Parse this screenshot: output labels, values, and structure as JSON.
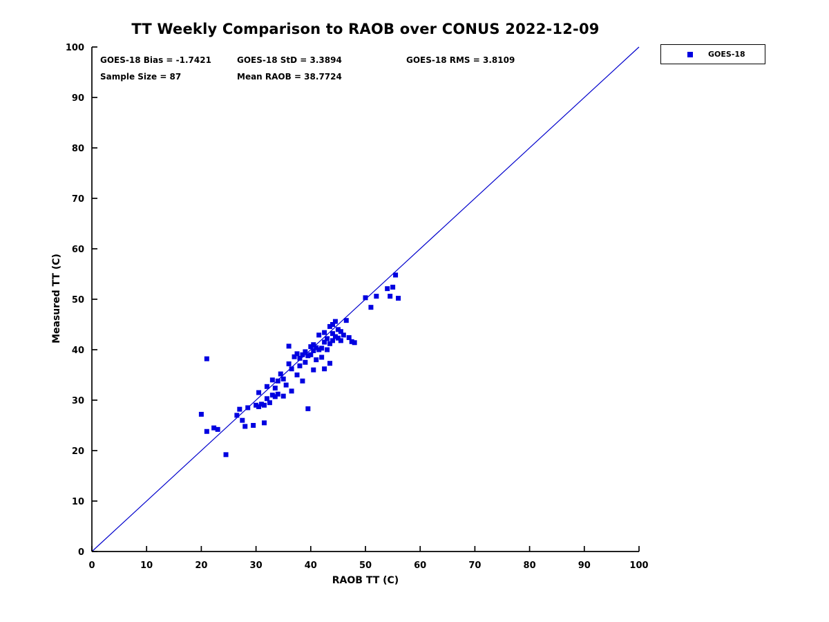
{
  "chart_data": {
    "type": "scatter",
    "title": "TT Weekly Comparison to RAOB over CONUS 2022-12-09",
    "xlabel": "RAOB TT (C)",
    "ylabel": "Measured TT (C)",
    "xlim": [
      0,
      100
    ],
    "ylim": [
      0,
      100
    ],
    "x_ticks": [
      0,
      10,
      20,
      30,
      40,
      50,
      60,
      70,
      80,
      90,
      100
    ],
    "y_ticks": [
      0,
      10,
      20,
      30,
      40,
      50,
      60,
      70,
      80,
      90,
      100
    ],
    "grid": false,
    "legend_position": "top-right-outside",
    "annotations": [
      "GOES-18 Bias = -1.7421",
      "GOES-18 StD = 3.3894",
      "GOES-18 RMS = 3.8109",
      "Sample Size = 87",
      "Mean RAOB = 38.7724"
    ],
    "reference_line": {
      "from": [
        0,
        0
      ],
      "to": [
        100,
        100
      ],
      "color": "#0000CC"
    },
    "axis_color": "#000000",
    "series": [
      {
        "name": "GOES-18",
        "marker": "square",
        "color": "#0000E0",
        "points": [
          [
            20,
            27.2
          ],
          [
            21,
            38.2
          ],
          [
            21,
            23.8
          ],
          [
            22.3,
            24.5
          ],
          [
            23,
            24.2
          ],
          [
            24.5,
            19.2
          ],
          [
            26.5,
            27
          ],
          [
            27,
            28.2
          ],
          [
            27.5,
            26
          ],
          [
            28,
            24.8
          ],
          [
            28.5,
            28.5
          ],
          [
            29.5,
            25
          ],
          [
            30,
            29
          ],
          [
            30.5,
            31.5
          ],
          [
            30.5,
            28.7
          ],
          [
            31,
            29.2
          ],
          [
            31.5,
            29
          ],
          [
            31.5,
            25.5
          ],
          [
            32,
            32.7
          ],
          [
            32,
            30.3
          ],
          [
            32.5,
            29.5
          ],
          [
            33,
            34
          ],
          [
            33,
            31
          ],
          [
            33.5,
            32.4
          ],
          [
            33.5,
            30.7
          ],
          [
            34,
            33.8
          ],
          [
            34,
            31.2
          ],
          [
            34.5,
            35.2
          ],
          [
            35,
            34.2
          ],
          [
            35,
            30.8
          ],
          [
            35.5,
            33
          ],
          [
            36,
            40.7
          ],
          [
            36,
            37.2
          ],
          [
            36.5,
            36.2
          ],
          [
            36.5,
            31.8
          ],
          [
            37,
            38.6
          ],
          [
            37.5,
            39.2
          ],
          [
            37.5,
            35
          ],
          [
            38,
            38.3
          ],
          [
            38,
            36.8
          ],
          [
            38.5,
            39
          ],
          [
            38.5,
            33.8
          ],
          [
            39,
            39.6
          ],
          [
            39,
            37.5
          ],
          [
            39.5,
            38.8
          ],
          [
            39.5,
            28.3
          ],
          [
            40,
            40.6
          ],
          [
            40,
            39
          ],
          [
            40.5,
            41
          ],
          [
            40.5,
            39.8
          ],
          [
            40.5,
            36
          ],
          [
            41,
            40.4
          ],
          [
            41,
            38
          ],
          [
            41.5,
            42.9
          ],
          [
            41.5,
            40
          ],
          [
            42,
            40.3
          ],
          [
            42,
            38.5
          ],
          [
            42.5,
            43.4
          ],
          [
            42.5,
            41.5
          ],
          [
            42.5,
            36.2
          ],
          [
            43,
            42.2
          ],
          [
            43,
            40
          ],
          [
            43.5,
            44.6
          ],
          [
            43.5,
            41.2
          ],
          [
            43.5,
            37.3
          ],
          [
            44,
            45
          ],
          [
            44,
            43.2
          ],
          [
            44,
            41.8
          ],
          [
            44.5,
            45.6
          ],
          [
            44.5,
            42.6
          ],
          [
            45,
            44
          ],
          [
            45,
            42.3
          ],
          [
            45.5,
            43.6
          ],
          [
            45.5,
            41.8
          ],
          [
            46,
            42.9
          ],
          [
            46.5,
            45.8
          ],
          [
            47,
            42.4
          ],
          [
            47.5,
            41.6
          ],
          [
            48,
            41.4
          ],
          [
            50,
            50.3
          ],
          [
            51,
            48.4
          ],
          [
            52,
            50.6
          ],
          [
            54,
            52.1
          ],
          [
            54.5,
            50.6
          ],
          [
            55,
            52.4
          ],
          [
            55.5,
            54.8
          ],
          [
            56,
            50.2
          ]
        ]
      }
    ]
  }
}
